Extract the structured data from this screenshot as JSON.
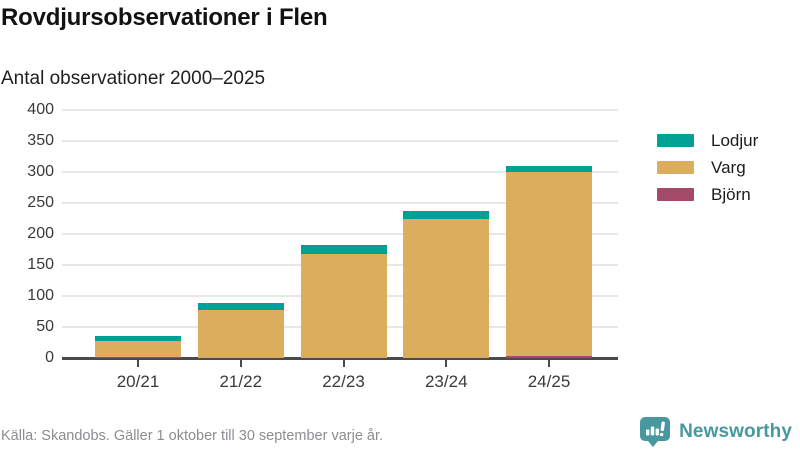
{
  "header": {
    "title": "Rovdjursobservationer i Flen",
    "subtitle": "Antal observationer 2000–2025"
  },
  "footer": {
    "source": "Källa: Skandobs. Gäller 1 oktober till 30 september varje år.",
    "brand": "Newsworthy"
  },
  "colors": {
    "lodjur": "#00a195",
    "varg": "#dbad5c",
    "bjorn": "#a34a68",
    "brand": "#47999f",
    "grid": "#e7e7e7",
    "axis": "#4a4a4a"
  },
  "chart_data": {
    "type": "bar",
    "stacked": true,
    "title": "Rovdjursobservationer i Flen",
    "subtitle": "Antal observationer 2000–2025",
    "categories": [
      "20/21",
      "21/22",
      "22/23",
      "23/24",
      "24/25"
    ],
    "series": [
      {
        "name": "Björn",
        "color_key": "bjorn",
        "values": [
          2,
          0,
          0,
          0,
          3
        ]
      },
      {
        "name": "Varg",
        "color_key": "varg",
        "values": [
          26,
          78,
          167,
          225,
          297
        ]
      },
      {
        "name": "Lodjur",
        "color_key": "lodjur",
        "values": [
          7,
          11,
          16,
          12,
          10
        ]
      }
    ],
    "totals": [
      35,
      89,
      183,
      237,
      310
    ],
    "legend": [
      {
        "label": "Lodjur",
        "color_key": "lodjur"
      },
      {
        "label": "Varg",
        "color_key": "varg"
      },
      {
        "label": "Björn",
        "color_key": "bjorn"
      }
    ],
    "legend_position": "right",
    "grid": true,
    "xlabel": "",
    "ylabel": "",
    "ylim": [
      0,
      400
    ],
    "ytick_step": 50
  }
}
